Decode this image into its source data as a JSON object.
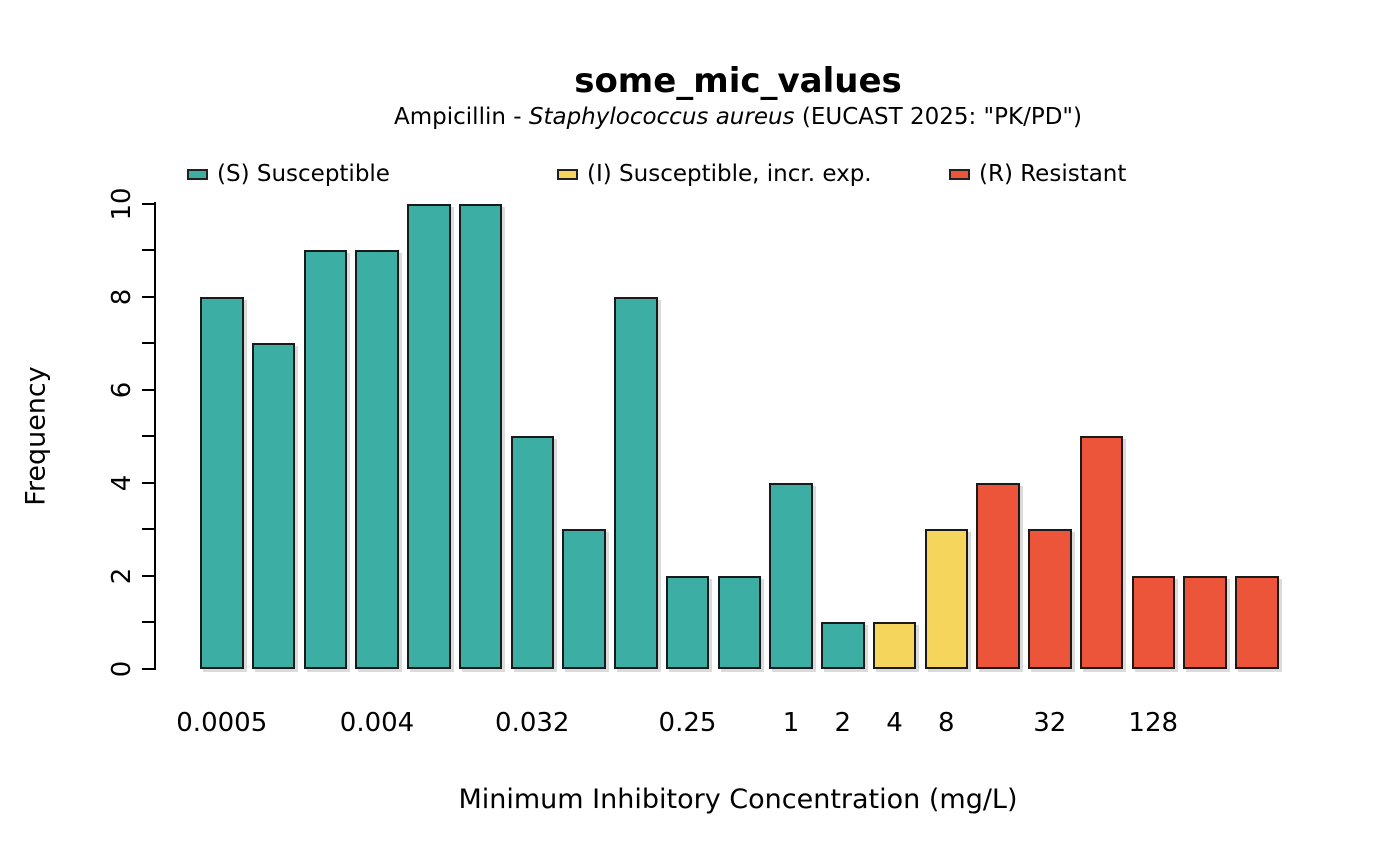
{
  "title": "some_mic_values",
  "subtitle": {
    "prefix": "Ampicillin - ",
    "italic": "Staphylococcus aureus",
    "suffix": " (EUCAST 2025: \"PK/PD\")"
  },
  "legend": [
    {
      "name": "susceptible",
      "label": "(S) Susceptible",
      "color": "#3CAEA3"
    },
    {
      "name": "susceptible-increased-exposure",
      "label": "(I) Susceptible, incr. exp.",
      "color": "#F6D55C"
    },
    {
      "name": "resistant",
      "label": "(R) Resistant",
      "color": "#ED553B"
    }
  ],
  "chart_data": {
    "type": "bar",
    "title": "some_mic_values",
    "subtitle": "Ampicillin - Staphylococcus aureus (EUCAST 2025: \"PK/PD\")",
    "xlabel": "Minimum Inhibitory Concentration (mg/L)",
    "ylabel": "Frequency",
    "ylim": [
      0,
      10
    ],
    "y_tick_step": 1,
    "y_tick_labels": [
      0,
      2,
      4,
      6,
      8,
      10
    ],
    "x_tick_labels_visible": [
      "0.0005",
      "0.004",
      "0.032",
      "0.25",
      "1",
      "2",
      "4",
      "8",
      "32",
      "128"
    ],
    "grid": false,
    "legend_position": "top",
    "category_colors": {
      "S": "#3CAEA3",
      "I": "#F6D55C",
      "R": "#ED553B"
    },
    "bar_border_color": "#1a1a1a",
    "bars": [
      {
        "x_label": "0.0005",
        "value": 8,
        "category": "S"
      },
      {
        "x_label": "",
        "value": 7,
        "category": "S"
      },
      {
        "x_label": "",
        "value": 9,
        "category": "S"
      },
      {
        "x_label": "0.004",
        "value": 9,
        "category": "S"
      },
      {
        "x_label": "",
        "value": 10,
        "category": "S"
      },
      {
        "x_label": "",
        "value": 10,
        "category": "S"
      },
      {
        "x_label": "0.032",
        "value": 5,
        "category": "S"
      },
      {
        "x_label": "",
        "value": 3,
        "category": "S"
      },
      {
        "x_label": "",
        "value": 8,
        "category": "S"
      },
      {
        "x_label": "0.25",
        "value": 2,
        "category": "S"
      },
      {
        "x_label": "",
        "value": 2,
        "category": "S"
      },
      {
        "x_label": "1",
        "value": 4,
        "category": "S"
      },
      {
        "x_label": "2",
        "value": 1,
        "category": "S"
      },
      {
        "x_label": "4",
        "value": 1,
        "category": "I"
      },
      {
        "x_label": "8",
        "value": 3,
        "category": "I"
      },
      {
        "x_label": "",
        "value": 4,
        "category": "R"
      },
      {
        "x_label": "32",
        "value": 3,
        "category": "R"
      },
      {
        "x_label": "",
        "value": 5,
        "category": "R"
      },
      {
        "x_label": "128",
        "value": 2,
        "category": "R"
      },
      {
        "x_label": "",
        "value": 2,
        "category": "R"
      },
      {
        "x_label": "",
        "value": 2,
        "category": "R"
      }
    ]
  }
}
